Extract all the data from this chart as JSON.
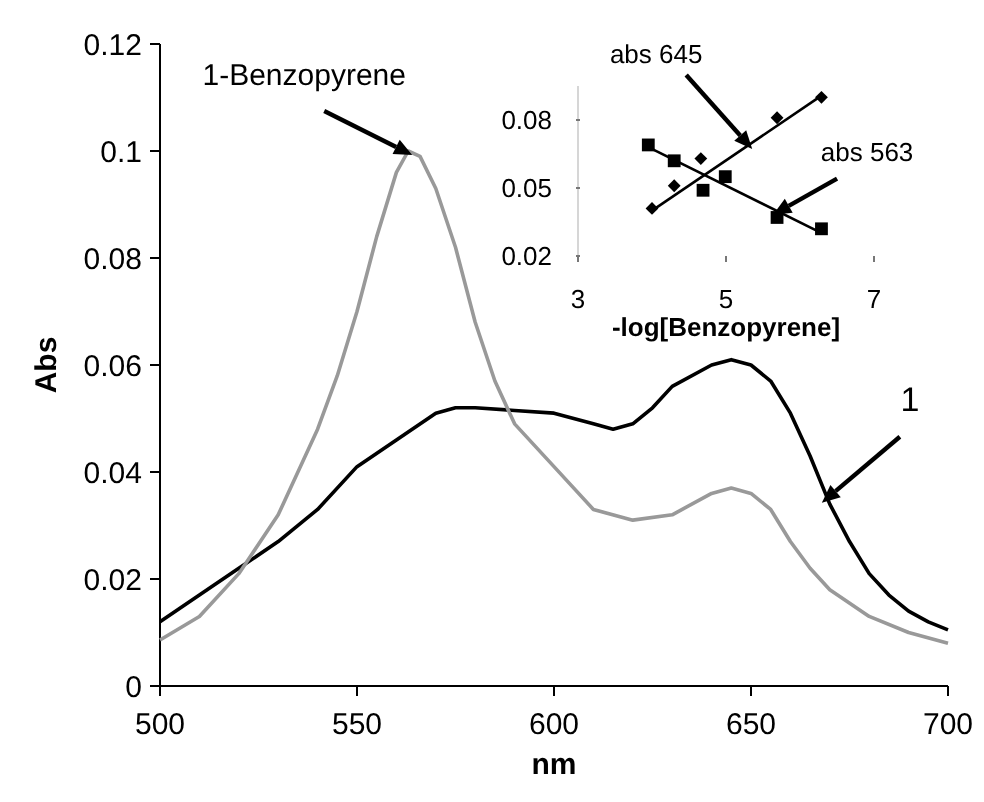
{
  "chart_data": [
    {
      "type": "line",
      "xlabel": "nm",
      "ylabel": "Abs",
      "xlim": [
        500,
        700
      ],
      "ylim": [
        0,
        0.12
      ],
      "xticks": [
        500,
        550,
        600,
        650,
        700
      ],
      "yticks": [
        0,
        0.02,
        0.04,
        0.06,
        0.08,
        0.1,
        0.12
      ],
      "grid": false,
      "marker": "none",
      "series": [
        {
          "color": "#000000",
          "x": [
            500,
            510,
            520,
            530,
            540,
            550,
            560,
            570,
            575,
            580,
            590,
            600,
            610,
            615,
            620,
            625,
            630,
            640,
            645,
            650,
            655,
            660,
            665,
            670,
            675,
            680,
            685,
            690,
            695,
            700
          ],
          "values": [
            0.012,
            0.017,
            0.022,
            0.027,
            0.033,
            0.041,
            0.046,
            0.051,
            0.052,
            0.052,
            0.0515,
            0.051,
            0.049,
            0.048,
            0.049,
            0.052,
            0.056,
            0.06,
            0.061,
            0.06,
            0.057,
            0.051,
            0.043,
            0.034,
            0.027,
            0.021,
            0.017,
            0.014,
            0.012,
            0.0105
          ]
        },
        {
          "color": "#999999",
          "x": [
            500,
            510,
            520,
            530,
            540,
            545,
            550,
            555,
            560,
            563,
            566,
            570,
            575,
            580,
            585,
            590,
            600,
            610,
            620,
            630,
            640,
            645,
            650,
            655,
            660,
            665,
            670,
            680,
            690,
            700
          ],
          "values": [
            0.0086,
            0.013,
            0.021,
            0.032,
            0.048,
            0.058,
            0.07,
            0.084,
            0.096,
            0.1,
            0.099,
            0.093,
            0.082,
            0.068,
            0.057,
            0.049,
            0.041,
            0.033,
            0.031,
            0.032,
            0.036,
            0.037,
            0.036,
            0.033,
            0.027,
            0.022,
            0.018,
            0.013,
            0.01,
            0.008
          ]
        }
      ],
      "annotations": [
        {
          "text": "1-Benzopyrene",
          "x": 563,
          "y": 0.1
        },
        {
          "text": "1",
          "x": 669,
          "y": 0.035
        }
      ]
    },
    {
      "type": "scatter",
      "xlabel": "-log[Benzopyrene]",
      "xlim": [
        3,
        7
      ],
      "ylim": [
        0.02,
        0.095
      ],
      "xticks": [
        3,
        5,
        7
      ],
      "yticks": [
        0.02,
        0.05,
        0.08
      ],
      "grid": false,
      "series": [
        {
          "marker": "diamond",
          "color": "#000000",
          "x": [
            4.0,
            4.3,
            4.66,
            5.69,
            6.29
          ],
          "values": [
            0.041,
            0.051,
            0.063,
            0.081,
            0.09
          ]
        },
        {
          "marker": "square",
          "color": "#000000",
          "x": [
            3.95,
            4.3,
            4.69,
            4.99,
            5.69,
            6.29
          ],
          "values": [
            0.069,
            0.062,
            0.049,
            0.055,
            0.037,
            0.032
          ]
        },
        {
          "type": "line",
          "color": "#000000",
          "x": [
            4.0,
            6.3
          ],
          "values": [
            0.04,
            0.091
          ]
        },
        {
          "type": "line",
          "color": "#000000",
          "x": [
            3.95,
            6.3
          ],
          "values": [
            0.068,
            0.03
          ]
        }
      ],
      "annotations": [
        {
          "text": "abs 645",
          "x": 5.3,
          "y": 0.069
        },
        {
          "text": "abs 563",
          "x": 5.69,
          "y": 0.04
        }
      ]
    }
  ]
}
